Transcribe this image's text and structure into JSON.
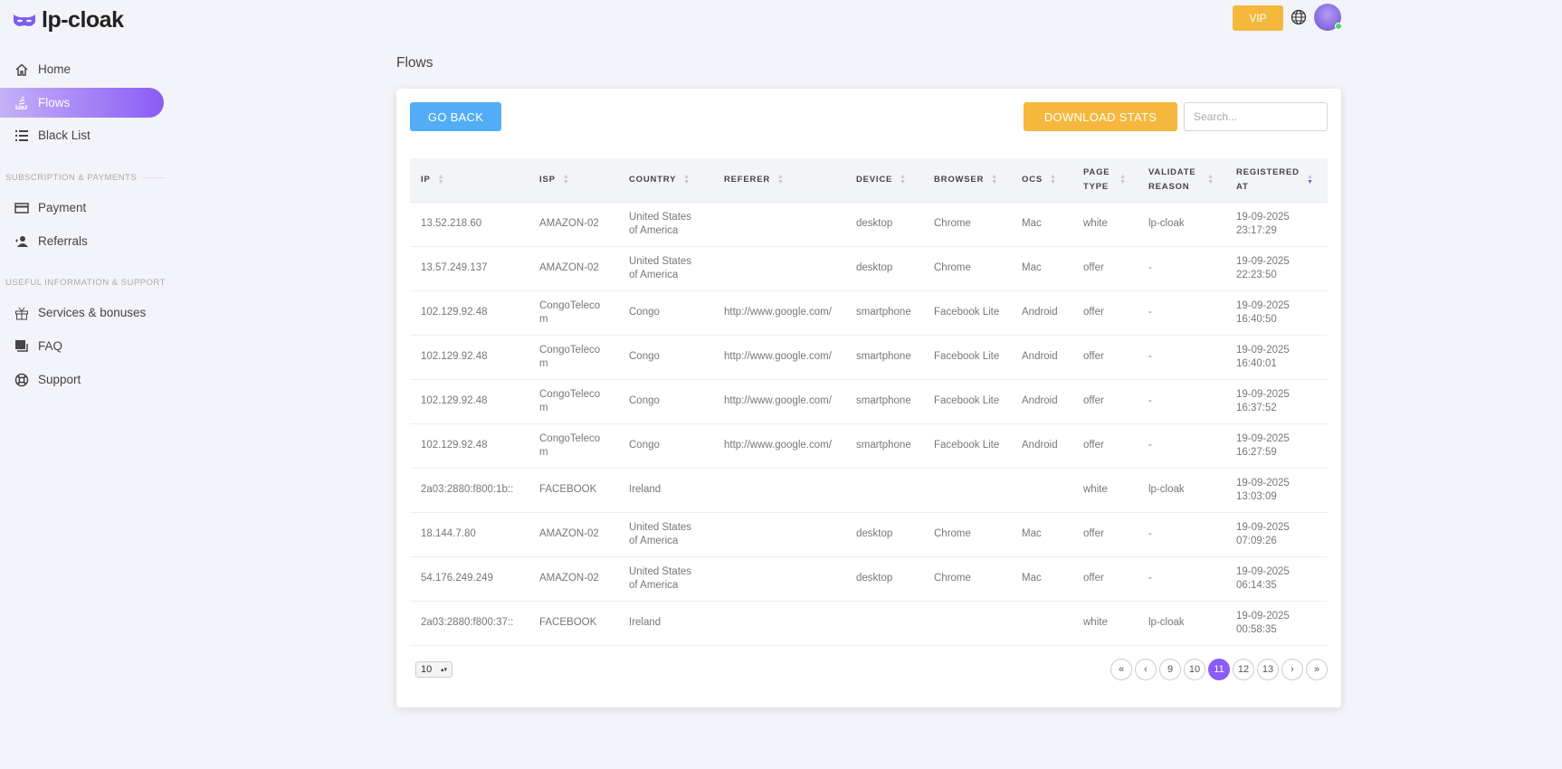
{
  "app": {
    "name": "lp-cloak"
  },
  "topbar": {
    "vip_label": "VIP"
  },
  "sidebar": {
    "items": [
      {
        "label": "Home",
        "icon": "home-icon"
      },
      {
        "label": "Flows",
        "icon": "flows-icon",
        "active": true
      },
      {
        "label": "Black List",
        "icon": "list-icon"
      }
    ],
    "sections": [
      {
        "title": "SUBSCRIPTION & PAYMENTS",
        "items": [
          {
            "label": "Payment",
            "icon": "credit-card-icon"
          },
          {
            "label": "Referrals",
            "icon": "user-plus-icon"
          }
        ]
      },
      {
        "title": "USEFUL INFORMATION & SUPPORT",
        "items": [
          {
            "label": "Services & bonuses",
            "icon": "gift-icon"
          },
          {
            "label": "FAQ",
            "icon": "faq-icon"
          },
          {
            "label": "Support",
            "icon": "lifebuoy-icon"
          }
        ]
      }
    ]
  },
  "page": {
    "title": "Flows",
    "go_back": "GO BACK",
    "download": "DOWNLOAD STATS",
    "search_placeholder": "Search..."
  },
  "table": {
    "columns": [
      "IP",
      "ISP",
      "COUNTRY",
      "REFERER",
      "DEVICE",
      "BROWSER",
      "OCS",
      "PAGE TYPE",
      "VALIDATE REASON",
      "REGISTERED AT"
    ],
    "sorted_column": "REGISTERED AT",
    "sort_direction": "desc",
    "rows": [
      [
        "13.52.218.60",
        "AMAZON-02",
        "United States of America",
        "",
        "desktop",
        "Chrome",
        "Mac",
        "white",
        "lp-cloak",
        "19-09-2025 23:17:29"
      ],
      [
        "13.57.249.137",
        "AMAZON-02",
        "United States of America",
        "",
        "desktop",
        "Chrome",
        "Mac",
        "offer",
        "-",
        "19-09-2025 22:23:50"
      ],
      [
        "102.129.92.48",
        "CongoTelecom",
        "Congo",
        "http://www.google.com/",
        "smartphone",
        "Facebook Lite",
        "Android",
        "offer",
        "-",
        "19-09-2025 16:40:50"
      ],
      [
        "102.129.92.48",
        "CongoTelecom",
        "Congo",
        "http://www.google.com/",
        "smartphone",
        "Facebook Lite",
        "Android",
        "offer",
        "-",
        "19-09-2025 16:40:01"
      ],
      [
        "102.129.92.48",
        "CongoTelecom",
        "Congo",
        "http://www.google.com/",
        "smartphone",
        "Facebook Lite",
        "Android",
        "offer",
        "-",
        "19-09-2025 16:37:52"
      ],
      [
        "102.129.92.48",
        "CongoTelecom",
        "Congo",
        "http://www.google.com/",
        "smartphone",
        "Facebook Lite",
        "Android",
        "offer",
        "-",
        "19-09-2025 16:27:59"
      ],
      [
        "2a03:2880:f800:1b::",
        "FACEBOOK",
        "Ireland",
        "",
        "",
        "",
        "",
        "white",
        "lp-cloak",
        "19-09-2025 13:03:09"
      ],
      [
        "18.144.7.80",
        "AMAZON-02",
        "United States of America",
        "",
        "desktop",
        "Chrome",
        "Mac",
        "offer",
        "-",
        "19-09-2025 07:09:26"
      ],
      [
        "54.176.249.249",
        "AMAZON-02",
        "United States of America",
        "",
        "desktop",
        "Chrome",
        "Mac",
        "offer",
        "-",
        "19-09-2025 06:14:35"
      ],
      [
        "2a03:2880:f800:37::",
        "FACEBOOK",
        "Ireland",
        "",
        "",
        "",
        "",
        "white",
        "lp-cloak",
        "19-09-2025 00:58:35"
      ]
    ]
  },
  "pagination": {
    "per_page": "10",
    "pages": [
      "9",
      "10",
      "11",
      "12",
      "13"
    ],
    "current": "11",
    "first": "«",
    "prev": "‹",
    "next": "›",
    "last": "»"
  },
  "colors": {
    "accent": "#8b5cf6",
    "vip": "#f5b83d",
    "go_back": "#53adf6"
  }
}
